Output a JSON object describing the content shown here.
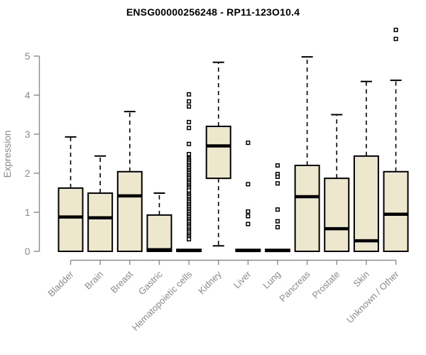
{
  "colors": {
    "box_fill": "#EDE8CD",
    "box_stroke": "#000000",
    "median_stroke": "#000000",
    "whisker_stroke": "#000000",
    "axis_stroke": "#8A8A8A",
    "axis_text": "#8A8A8A",
    "title_text": "#000000",
    "background": "#FFFFFF"
  },
  "chart_data": {
    "type": "boxplot",
    "title": "ENSG00000256248 - RP11-123O10.4",
    "xlabel": "",
    "ylabel": "Expression",
    "ylim": [
      0,
      5.8
    ],
    "yticks": [
      0,
      1,
      2,
      3,
      4,
      5
    ],
    "grid": false,
    "legend": "none",
    "categories": [
      "Bladder",
      "Brain",
      "Breast",
      "Gastric",
      "Hematopoietic cells",
      "Kidney",
      "Liver",
      "Lung",
      "Pancreas",
      "Prostate",
      "Skin",
      "Unknown / Other"
    ],
    "boxes": [
      {
        "category": "Bladder",
        "low": 0,
        "q1": 0,
        "median": 0.88,
        "q3": 1.62,
        "high": 2.93,
        "outliers": []
      },
      {
        "category": "Brain",
        "low": 0,
        "q1": 0,
        "median": 0.86,
        "q3": 1.49,
        "high": 2.44,
        "outliers": []
      },
      {
        "category": "Breast",
        "low": 0,
        "q1": 0,
        "median": 1.42,
        "q3": 2.04,
        "high": 3.58,
        "outliers": []
      },
      {
        "category": "Gastric",
        "low": 0,
        "q1": 0,
        "median": 0.04,
        "q3": 0.93,
        "high": 1.49,
        "outliers": []
      },
      {
        "category": "Hematopoietic cells",
        "low": 0,
        "q1": 0,
        "median": 0.02,
        "q3": 0.05,
        "high": 0.05,
        "outliers": [
          4.02,
          3.84,
          3.71,
          3.31,
          3.16,
          2.75,
          2.49,
          2.38,
          2.34,
          2.3,
          2.26,
          2.21,
          2.17,
          2.13,
          2.08,
          2.04,
          2.0,
          1.95,
          1.91,
          1.87,
          1.82,
          1.78,
          1.74,
          1.69,
          1.65,
          1.61,
          1.56,
          1.47,
          1.43,
          1.39,
          1.34,
          1.3,
          1.26,
          1.21,
          1.17,
          1.13,
          1.08,
          1.04,
          1.0,
          0.95,
          0.91,
          0.87,
          0.82,
          0.78,
          0.74,
          0.69,
          0.65,
          0.61,
          0.56,
          0.52,
          0.48,
          0.43,
          0.39,
          0.35,
          0.31
        ]
      },
      {
        "category": "Kidney",
        "low": 0.14,
        "q1": 1.87,
        "median": 2.7,
        "q3": 3.2,
        "high": 4.84,
        "outliers": []
      },
      {
        "category": "Liver",
        "low": 0,
        "q1": 0,
        "median": 0.02,
        "q3": 0.05,
        "high": 0.05,
        "outliers": [
          2.78,
          1.72,
          1.02,
          0.9,
          0.7
        ]
      },
      {
        "category": "Lung",
        "low": 0,
        "q1": 0,
        "median": 0.02,
        "q3": 0.05,
        "high": 0.05,
        "outliers": [
          2.2,
          1.98,
          1.91,
          1.74,
          1.07,
          0.77,
          0.62
        ]
      },
      {
        "category": "Pancreas",
        "low": 0,
        "q1": 0,
        "median": 1.4,
        "q3": 2.2,
        "high": 4.98,
        "outliers": []
      },
      {
        "category": "Prostate",
        "low": 0,
        "q1": 0,
        "median": 0.58,
        "q3": 1.87,
        "high": 3.5,
        "outliers": []
      },
      {
        "category": "Skin",
        "low": 0,
        "q1": 0,
        "median": 0.27,
        "q3": 2.44,
        "high": 4.35,
        "outliers": []
      },
      {
        "category": "Unknown / Other",
        "low": 0,
        "q1": 0,
        "median": 0.95,
        "q3": 2.04,
        "high": 4.38,
        "outliers": [
          5.44,
          5.67
        ]
      }
    ]
  }
}
